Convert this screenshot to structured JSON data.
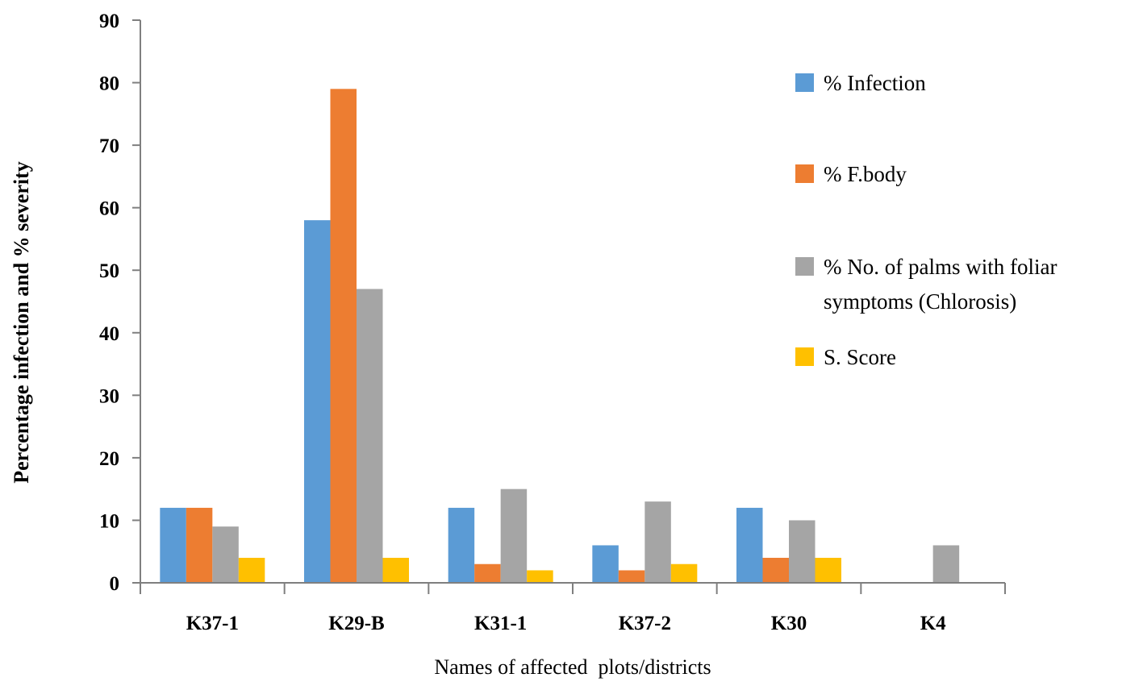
{
  "chart_data": {
    "type": "bar",
    "title": "",
    "xlabel": "Names of affected  plots/districts",
    "ylabel": "Percentage infection and % severity",
    "ylim": [
      0,
      90
    ],
    "yticks": [
      0,
      10,
      20,
      30,
      40,
      50,
      60,
      70,
      80,
      90
    ],
    "grid": false,
    "legend_position": "right",
    "categories": [
      "K37-1",
      "K29-B",
      "K31-1",
      "K37-2",
      "K30",
      "K4"
    ],
    "series": [
      {
        "name": "% Infection",
        "color": "#5B9BD5",
        "values": [
          12,
          58,
          12,
          6,
          12,
          0
        ]
      },
      {
        "name": "% F.body",
        "color": "#ED7D31",
        "values": [
          12,
          79,
          3,
          2,
          4,
          0
        ]
      },
      {
        "name": "% No. of palms with foliar symptoms (Chlorosis)",
        "legend_lines": [
          "% No. of palms with foliar",
          "symptoms (Chlorosis)"
        ],
        "color": "#A5A5A5",
        "values": [
          9,
          47,
          15,
          13,
          10,
          6
        ]
      },
      {
        "name": "S. Score",
        "color": "#FFC000",
        "values": [
          4,
          4,
          2,
          3,
          4,
          0
        ]
      }
    ]
  }
}
